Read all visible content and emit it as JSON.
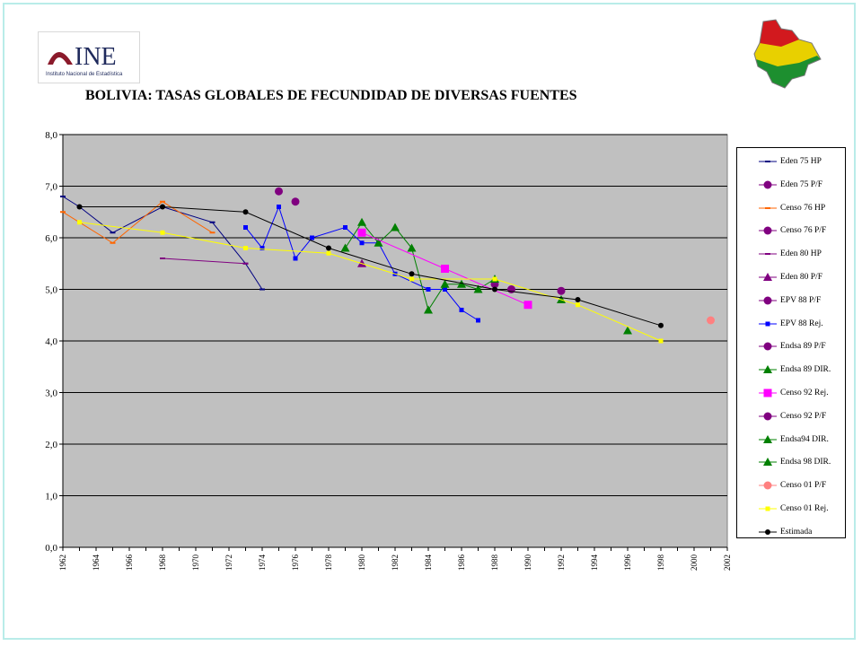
{
  "page": {
    "title": "BOLIVIA: TASAS GLOBALES DE FECUNDIDAD DE DIVERSAS FUENTES",
    "logo": {
      "text": "INE",
      "subtitle": "Instituto Nacional de Estadística",
      "icon": "ine-logo-icon"
    },
    "map_icon": "bolivia-flag-map-icon"
  },
  "chart_data": {
    "type": "line",
    "title": "BOLIVIA: TASAS GLOBALES DE FECUNDIDAD DE DIVERSAS FUENTES",
    "xlabel": "",
    "ylabel": "",
    "xlim": [
      1962,
      2002
    ],
    "ylim": [
      0,
      8
    ],
    "x_ticks": [
      1962,
      1964,
      1966,
      1968,
      1970,
      1972,
      1974,
      1976,
      1978,
      1980,
      1982,
      1984,
      1986,
      1988,
      1990,
      1992,
      1994,
      1996,
      1998,
      2000,
      2002
    ],
    "y_ticks": [
      "0,0",
      "1,0",
      "2,0",
      "3,0",
      "4,0",
      "5,0",
      "6,0",
      "7,0",
      "8,0"
    ],
    "grid": "horizontal",
    "legend": "right",
    "background": "#c0c0c0",
    "series": [
      {
        "name": "Eden 75 HP",
        "color": "#000080",
        "marker": "dash",
        "line": true,
        "points": [
          [
            1962,
            6.8
          ],
          [
            1963,
            6.6
          ],
          [
            1965,
            6.1
          ],
          [
            1968,
            6.6
          ],
          [
            1971,
            6.3
          ],
          [
            1973,
            5.5
          ],
          [
            1974,
            5.0
          ]
        ]
      },
      {
        "name": "Eden 75 P/F",
        "color": "#800080",
        "marker": "circle",
        "line": false,
        "points": [
          [
            1975,
            6.9
          ],
          [
            1976,
            6.7
          ]
        ]
      },
      {
        "name": "Censo 76 HP",
        "color": "#ff6600",
        "marker": "dash",
        "line": true,
        "points": [
          [
            1962,
            6.5
          ],
          [
            1965,
            5.9
          ],
          [
            1968,
            6.7
          ],
          [
            1971,
            6.1
          ]
        ]
      },
      {
        "name": "Censo 76 P/F",
        "color": "#800080",
        "marker": "circle",
        "line": false,
        "points": []
      },
      {
        "name": "Eden 80 HP",
        "color": "#800080",
        "marker": "dash",
        "line": true,
        "points": [
          [
            1968,
            5.6
          ],
          [
            1973,
            5.5
          ]
        ]
      },
      {
        "name": "Eden 80 P/F",
        "color": "#800080",
        "marker": "triangle",
        "line": false,
        "points": [
          [
            1980,
            5.5
          ]
        ]
      },
      {
        "name": "EPV 88 P/F",
        "color": "#800080",
        "marker": "circle",
        "line": false,
        "points": []
      },
      {
        "name": "EPV 88 Rej.",
        "color": "#0000ff",
        "marker": "square",
        "line": true,
        "points": [
          [
            1973,
            6.2
          ],
          [
            1974,
            5.8
          ],
          [
            1975,
            6.6
          ],
          [
            1976,
            5.6
          ],
          [
            1977,
            6.0
          ],
          [
            1979,
            6.2
          ],
          [
            1980,
            5.9
          ],
          [
            1981,
            5.9
          ],
          [
            1982,
            5.3
          ],
          [
            1984,
            5.0
          ],
          [
            1985,
            5.0
          ],
          [
            1986,
            4.6
          ],
          [
            1987,
            4.4
          ]
        ]
      },
      {
        "name": "Endsa 89 P/F",
        "color": "#800080",
        "marker": "circle",
        "line": false,
        "points": [
          [
            1988,
            5.1
          ],
          [
            1989,
            5.0
          ]
        ]
      },
      {
        "name": "Endsa 89  DIR.",
        "color": "#008000",
        "marker": "triangle",
        "line": true,
        "points": [
          [
            1979,
            5.8
          ],
          [
            1980,
            6.3
          ],
          [
            1981,
            5.9
          ],
          [
            1982,
            6.2
          ],
          [
            1983,
            5.8
          ],
          [
            1984,
            4.6
          ],
          [
            1985,
            5.1
          ],
          [
            1986,
            5.1
          ],
          [
            1987,
            5.0
          ],
          [
            1988,
            5.2
          ]
        ]
      },
      {
        "name": "Censo 92 Rej.",
        "color": "#ff00ff",
        "marker": "square-big",
        "line": true,
        "points": [
          [
            1980,
            6.1
          ],
          [
            1985,
            5.4
          ],
          [
            1990,
            4.7
          ]
        ]
      },
      {
        "name": "Censo 92 P/F",
        "color": "#800080",
        "marker": "circle",
        "line": false,
        "points": [
          [
            1992,
            4.97
          ]
        ]
      },
      {
        "name": "Endsa94 DIR.",
        "color": "#008000",
        "marker": "triangle",
        "line": false,
        "points": [
          [
            1992,
            4.8
          ]
        ]
      },
      {
        "name": "Endsa 98 DIR.",
        "color": "#008000",
        "marker": "triangle",
        "line": false,
        "points": [
          [
            1996,
            4.2
          ]
        ]
      },
      {
        "name": "Censo 01 P/F",
        "color": "#ff8080",
        "marker": "circle",
        "line": false,
        "points": [
          [
            2001,
            4.4
          ]
        ]
      },
      {
        "name": "Censo 01 Rej.",
        "color": "#ffff00",
        "marker": "square-small",
        "line": true,
        "points": [
          [
            1963,
            6.3
          ],
          [
            1968,
            6.1
          ],
          [
            1973,
            5.8
          ],
          [
            1978,
            5.7
          ],
          [
            1983,
            5.2
          ],
          [
            1988,
            5.2
          ],
          [
            1993,
            4.7
          ],
          [
            1998,
            4.0
          ]
        ]
      },
      {
        "name": "Estimada",
        "color": "#000000",
        "marker": "circle-small",
        "line": true,
        "points": [
          [
            1963,
            6.6
          ],
          [
            1968,
            6.6
          ],
          [
            1973,
            6.5
          ],
          [
            1978,
            5.8
          ],
          [
            1983,
            5.3
          ],
          [
            1988,
            5.0
          ],
          [
            1993,
            4.8
          ],
          [
            1998,
            4.3
          ]
        ]
      }
    ]
  }
}
